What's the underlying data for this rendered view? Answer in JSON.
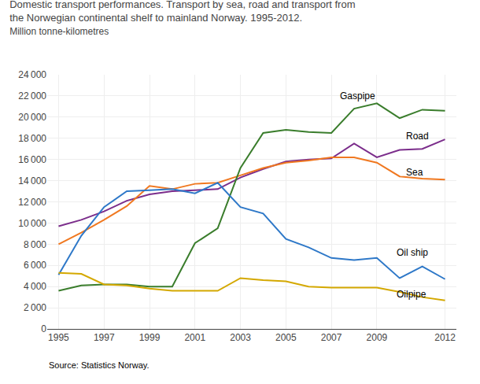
{
  "chart_data": {
    "type": "line",
    "title": [
      "Domestic transport performances. Transport by sea, road and transport from",
      "the Norwegian continental shelf to mainland Norway. 1995-2012."
    ],
    "subtitle": "Million tonne-kilometres",
    "source": "Source: Statistics Norway.",
    "x": [
      1995,
      1996,
      1997,
      1998,
      1999,
      2000,
      2001,
      2002,
      2003,
      2004,
      2005,
      2006,
      2007,
      2008,
      2009,
      2010,
      2011,
      2012
    ],
    "series": [
      {
        "name": "Road",
        "color": "#7b2d8b",
        "values": [
          9700,
          10300,
          11100,
          12100,
          12700,
          13000,
          13100,
          13200,
          14300,
          15100,
          15800,
          16000,
          16100,
          17500,
          16200,
          16900,
          17000,
          17900
        ]
      },
      {
        "name": "Sea",
        "color": "#f07820",
        "values": [
          8000,
          9100,
          10300,
          11600,
          13500,
          13200,
          13700,
          13800,
          14500,
          15200,
          15700,
          15900,
          16200,
          16200,
          15700,
          14400,
          14200,
          14100
        ]
      },
      {
        "name": "Gaspipe",
        "color": "#3a7d2c",
        "values": [
          3600,
          4100,
          4200,
          4200,
          4000,
          4000,
          8100,
          9500,
          15200,
          18500,
          18800,
          18600,
          18500,
          20800,
          21300,
          19900,
          20700,
          20600
        ]
      },
      {
        "name": "Oil ship",
        "color": "#2e78c8",
        "values": [
          5100,
          8800,
          11500,
          13000,
          13100,
          13200,
          12800,
          13800,
          11500,
          10900,
          8500,
          7700,
          6700,
          6500,
          6700,
          4800,
          5900,
          4700
        ]
      },
      {
        "name": "Oilpipe",
        "color": "#d4a800",
        "values": [
          5300,
          5200,
          4200,
          4100,
          3800,
          3600,
          3600,
          3600,
          4800,
          4600,
          4500,
          4000,
          3900,
          3900,
          3900,
          3500,
          3000,
          2700
        ]
      }
    ],
    "annotations": [
      {
        "text": "Gaspipe",
        "x": 2007.3,
        "y": 22000
      },
      {
        "text": "Road",
        "x": 2010.2,
        "y": 18200
      },
      {
        "text": "Sea",
        "x": 2010.2,
        "y": 14800
      },
      {
        "text": "Oil ship",
        "x": 2009.8,
        "y": 7200
      },
      {
        "text": "Oilpipe",
        "x": 2009.8,
        "y": 3300
      }
    ],
    "xlim": [
      1994.5,
      2012.5
    ],
    "xticks": [
      1995,
      1997,
      1999,
      2001,
      2003,
      2005,
      2007,
      2009,
      2012
    ],
    "ylim": [
      0,
      24000
    ],
    "yticks": [
      0,
      {
        "value": 2000,
        "label": "2 000"
      },
      {
        "value": 4000,
        "label": "4 000"
      },
      {
        "value": 6000,
        "label": "6 000"
      },
      {
        "value": 8000,
        "label": "8 000"
      },
      {
        "value": 10000,
        "label": "10 000"
      },
      {
        "value": 12000,
        "label": "12 000"
      },
      {
        "value": 14000,
        "label": "14 000"
      },
      {
        "value": 16000,
        "label": "16 000"
      },
      {
        "value": 18000,
        "label": "18 000"
      },
      {
        "value": 20000,
        "label": "20 000"
      },
      {
        "value": 22000,
        "label": "22 000"
      },
      {
        "value": 24000,
        "label": "24 000"
      }
    ],
    "grid": true
  }
}
